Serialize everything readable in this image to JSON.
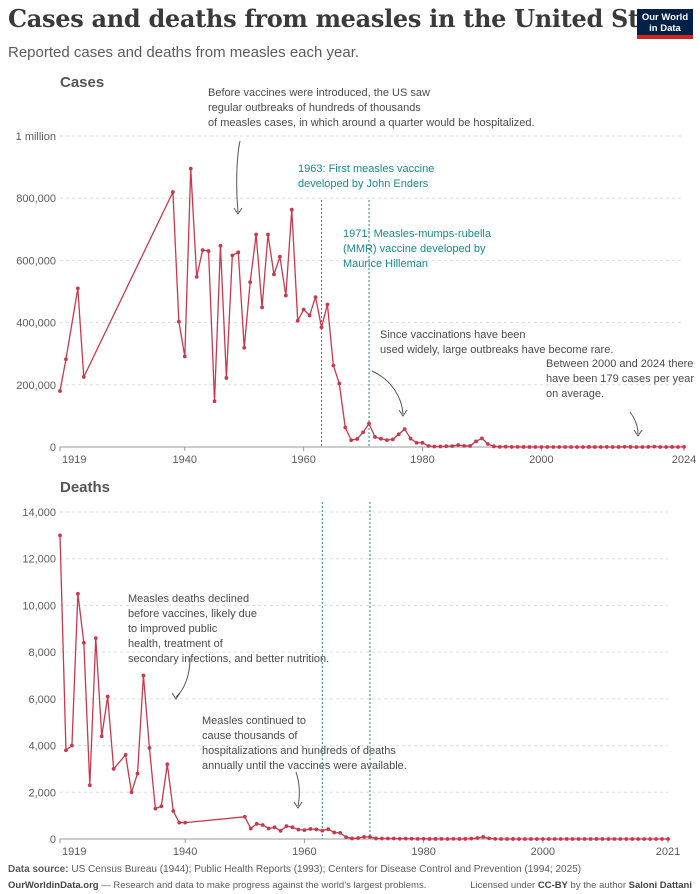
{
  "header": {
    "title": "Cases and deaths from measles in the United States",
    "subtitle": "Reported cases and deaths from measles each year.",
    "logo_line1": "Our World",
    "logo_line2": "in Data"
  },
  "colors": {
    "line": "#c8394d",
    "vaccine_line": "#1a8c7c",
    "annotation_vaccine": "#178a8a",
    "grid": "#dddddd",
    "text": "#5b5b5b"
  },
  "chart_data": [
    {
      "type": "line",
      "title": "Cases",
      "xlim": [
        1919,
        2024
      ],
      "ylim": [
        0,
        1000000
      ],
      "x_ticks": [
        "1919",
        "1940",
        "1960",
        "1980",
        "2000",
        "2024"
      ],
      "y_ticks": [
        {
          "value": 0,
          "label": "0"
        },
        {
          "value": 200000,
          "label": "200,000"
        },
        {
          "value": 400000,
          "label": "400,000"
        },
        {
          "value": 600000,
          "label": "600,000"
        },
        {
          "value": 800000,
          "label": "800,000"
        },
        {
          "value": 1000000,
          "label": "1 million"
        }
      ],
      "vaccine_markers": [
        1963,
        1971
      ],
      "series": [
        {
          "x": [
            1919,
            1920,
            1922,
            1923,
            1938,
            1939,
            1940,
            1941,
            1942,
            1943,
            1944,
            1945,
            1946,
            1947,
            1948,
            1949,
            1950,
            1951,
            1952,
            1953,
            1954,
            1955,
            1956,
            1957,
            1958,
            1959,
            1960,
            1961,
            1962,
            1963,
            1964,
            1965,
            1966,
            1967,
            1968,
            1969,
            1970,
            1971,
            1972,
            1973,
            1974,
            1975,
            1976,
            1977,
            1978,
            1979,
            1980,
            1981,
            1982,
            1983,
            1984,
            1985,
            1986,
            1987,
            1988,
            1989,
            1990,
            1991,
            1992,
            1993,
            1994,
            1995,
            1996,
            1997,
            1998,
            1999,
            2000,
            2001,
            2002,
            2003,
            2004,
            2005,
            2006,
            2007,
            2008,
            2009,
            2010,
            2011,
            2012,
            2013,
            2014,
            2015,
            2016,
            2017,
            2018,
            2019,
            2020,
            2021,
            2022,
            2023,
            2024
          ],
          "values": [
            180000,
            282000,
            510000,
            225000,
            820000,
            403000,
            291000,
            895000,
            547000,
            633000,
            630000,
            147000,
            647000,
            222000,
            616000,
            626000,
            319000,
            530000,
            683000,
            449000,
            683000,
            555000,
            612000,
            487000,
            763000,
            406000,
            442000,
            423000,
            482000,
            385000,
            458000,
            262000,
            204000,
            62700,
            22200,
            25800,
            47400,
            75300,
            32300,
            26700,
            22100,
            24400,
            41100,
            57300,
            26900,
            13600,
            13500,
            3100,
            1700,
            1500,
            2600,
            2800,
            6300,
            3700,
            3400,
            18200,
            27800,
            9600,
            2200,
            312,
            963,
            281,
            508,
            138,
            100,
            100,
            86,
            116,
            44,
            56,
            37,
            66,
            55,
            43,
            140,
            71,
            63,
            220,
            55,
            187,
            667,
            188,
            86,
            120,
            375,
            1274,
            13,
            49,
            121,
            59,
            285
          ]
        }
      ],
      "annotations": [
        "Before vaccines were introduced, the US saw regular outbreaks of hundreds of thousands of measles cases, in which around a quarter would be hospitalized.",
        "1963: First measles vaccine developed by John Enders",
        "1971: Measles-mumps-rubella (MMR) vaccine developed by Maurice Hilleman",
        "Since vaccinations have been used widely, large outbreaks have become rare.",
        "Between 2000 and 2024 there have been 179 cases per year on average."
      ]
    },
    {
      "type": "line",
      "title": "Deaths",
      "xlim": [
        1919,
        2021
      ],
      "ylim": [
        0,
        14000
      ],
      "x_ticks": [
        "1919",
        "1940",
        "1960",
        "1980",
        "2000",
        "2021"
      ],
      "y_ticks": [
        {
          "value": 0,
          "label": "0"
        },
        {
          "value": 2000,
          "label": "2,000"
        },
        {
          "value": 4000,
          "label": "4,000"
        },
        {
          "value": 6000,
          "label": "6,000"
        },
        {
          "value": 8000,
          "label": "8,000"
        },
        {
          "value": 10000,
          "label": "10,000"
        },
        {
          "value": 12000,
          "label": "12,000"
        },
        {
          "value": 14000,
          "label": "14,000"
        }
      ],
      "vaccine_markers": [
        1963,
        1971
      ],
      "series": [
        {
          "x": [
            1919,
            1920,
            1921,
            1922,
            1923,
            1924,
            1925,
            1926,
            1927,
            1928,
            1930,
            1931,
            1932,
            1933,
            1934,
            1935,
            1936,
            1937,
            1938,
            1939,
            1940,
            1950,
            1951,
            1952,
            1953,
            1954,
            1955,
            1956,
            1957,
            1958,
            1959,
            1960,
            1961,
            1962,
            1963,
            1964,
            1965,
            1966,
            1967,
            1968,
            1969,
            1970,
            1971,
            1972,
            1973,
            1974,
            1975,
            1976,
            1977,
            1978,
            1979,
            1980,
            1981,
            1982,
            1983,
            1984,
            1985,
            1986,
            1987,
            1988,
            1989,
            1990,
            1991,
            1992,
            1993,
            1994,
            1995,
            1996,
            1997,
            1998,
            1999,
            2000,
            2001,
            2002,
            2003,
            2004,
            2005,
            2006,
            2007,
            2008,
            2009,
            2010,
            2011,
            2012,
            2013,
            2014,
            2015,
            2016,
            2017,
            2018,
            2019,
            2020,
            2021
          ],
          "values": [
            13000,
            3800,
            4000,
            10500,
            8400,
            2300,
            8600,
            4400,
            6100,
            3000,
            3600,
            2000,
            2800,
            7000,
            3900,
            1300,
            1400,
            3200,
            1200,
            700,
            700,
            950,
            450,
            650,
            600,
            450,
            500,
            350,
            550,
            500,
            400,
            380,
            430,
            410,
            360,
            420,
            280,
            260,
            80,
            24,
            41,
            89,
            90,
            24,
            23,
            20,
            20,
            12,
            15,
            11,
            6,
            11,
            2,
            2,
            4,
            1,
            4,
            2,
            3,
            15,
            41,
            89,
            27,
            4,
            0,
            0,
            2,
            1,
            1,
            0,
            0,
            0,
            0,
            0,
            0,
            0,
            0,
            0,
            0,
            0,
            2,
            2,
            0,
            0,
            0,
            0,
            0,
            0,
            0,
            0,
            0,
            0,
            0
          ]
        }
      ],
      "annotations": [
        "Measles deaths declined before vaccines, likely due to improved public health, treatment of secondary infections, and better nutrition.",
        "Measles continued to cause thousands of hospitalizations and hundreds of deaths annually until the vaccines were available."
      ]
    }
  ],
  "footer": {
    "source_label": "Data source:",
    "source_text": "US Census Bureau (1944); Public Health Reports (1993); Centers for Disease Control and Prevention (1994; 2025)",
    "site": "OurWorldinData.org",
    "tagline": "— Research and data to make progress against the world’s largest problems.",
    "license_pre": "Licensed under",
    "license": "CC-BY",
    "license_mid": "by the author",
    "author": "Saloni Dattani"
  }
}
